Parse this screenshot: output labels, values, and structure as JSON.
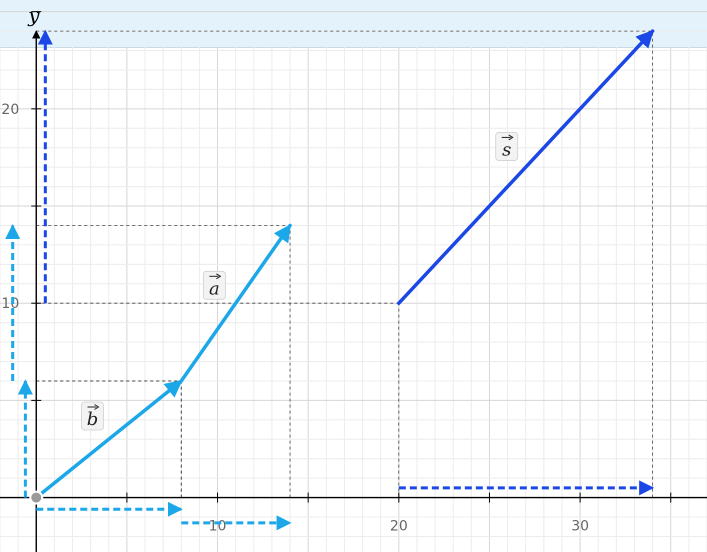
{
  "axes": {
    "y_name": "y",
    "x_ticks": [
      "10",
      "20",
      "30"
    ],
    "y_ticks": [
      "10",
      "20"
    ]
  },
  "colors": {
    "light_vector": "#1ba7e8",
    "dark_vector": "#1a47e6",
    "axis": "#000000",
    "grid_major": "#d6d6d6",
    "grid_minor": "#ececec",
    "projection_guides": "#444444",
    "header_bar": "#e4f3fb"
  },
  "chart_data": {
    "type": "vector-diagram",
    "origin_point": [
      0,
      0
    ],
    "vectors": [
      {
        "id": "b",
        "label": "b",
        "from": [
          0,
          0
        ],
        "to": [
          8,
          6
        ],
        "color": "light"
      },
      {
        "id": "a",
        "label": "a",
        "from": [
          8,
          6
        ],
        "to": [
          14,
          14
        ],
        "color": "light"
      },
      {
        "id": "s",
        "label": "s",
        "from": [
          20,
          10
        ],
        "to": [
          34,
          24
        ],
        "color": "dark"
      }
    ],
    "components": [
      {
        "of": "b",
        "axis": "x",
        "from": [
          0,
          -0.6
        ],
        "to": [
          8,
          -0.6
        ],
        "color": "light"
      },
      {
        "of": "b",
        "axis": "y",
        "from": [
          -0.6,
          0
        ],
        "to": [
          -0.6,
          6
        ],
        "color": "light"
      },
      {
        "of": "a",
        "axis": "x",
        "from": [
          8,
          -1.3
        ],
        "to": [
          14,
          -1.3
        ],
        "color": "light"
      },
      {
        "of": "a",
        "axis": "y",
        "from": [
          -1.3,
          6
        ],
        "to": [
          -1.3,
          14
        ],
        "color": "light"
      },
      {
        "of": "s",
        "axis": "x",
        "from": [
          20,
          0.5
        ],
        "to": [
          34,
          0.5
        ],
        "color": "dark"
      },
      {
        "of": "s",
        "axis": "y",
        "from": [
          0.5,
          10
        ],
        "to": [
          0.5,
          24
        ],
        "color": "dark"
      }
    ],
    "xlim": [
      -2,
      37
    ],
    "ylim": [
      -2.8,
      25.6
    ],
    "grid": true
  }
}
